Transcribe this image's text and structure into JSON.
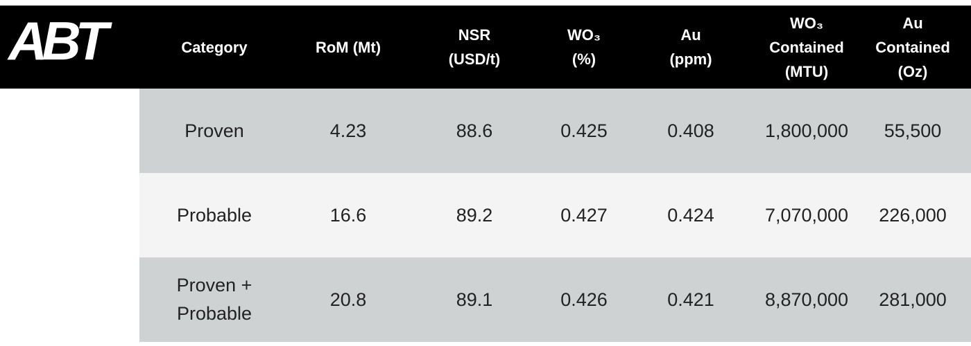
{
  "logo": "ABT",
  "table": {
    "headers": [
      [
        "Category"
      ],
      [
        "RoM (Mt)"
      ],
      [
        "NSR",
        "(USD/t)"
      ],
      [
        "WO₃",
        "(%)"
      ],
      [
        "Au",
        "(ppm)"
      ],
      [
        "WO₃",
        "Contained",
        "(MTU)"
      ],
      [
        "Au",
        "Contained",
        "(Oz)"
      ]
    ],
    "rows": [
      [
        "Proven",
        "4.23",
        "88.6",
        "0.425",
        "0.408",
        "1,800,000",
        "55,500"
      ],
      [
        "Probable",
        "16.6",
        "89.2",
        "0.427",
        "0.424",
        "7,070,000",
        "226,000"
      ],
      [
        "Proven + Probable",
        "20.8",
        "89.1",
        "0.426",
        "0.421",
        "8,870,000",
        "281,000"
      ]
    ]
  }
}
